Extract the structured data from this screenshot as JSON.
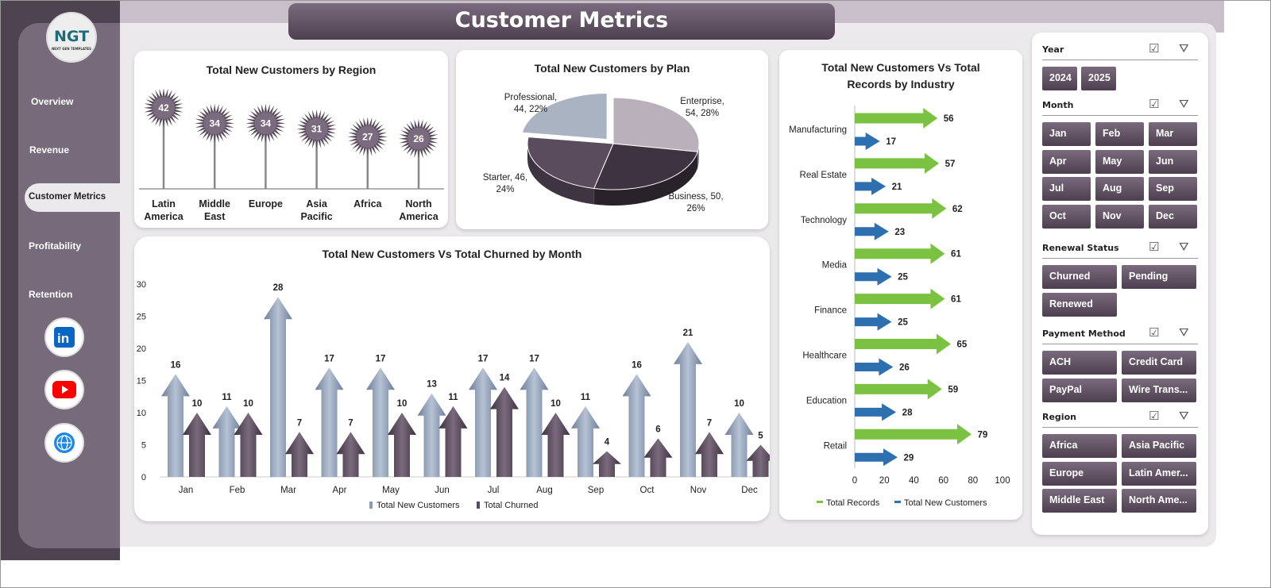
{
  "header": {
    "title": "Customer Metrics"
  },
  "logo": {
    "text": "NGT",
    "subtitle": "NEXT GEN TEMPLATES"
  },
  "sidebar": {
    "items": [
      {
        "label": "Overview"
      },
      {
        "label": "Revenue"
      },
      {
        "label": "Customer Metrics",
        "active": true
      },
      {
        "label": "Profitability"
      },
      {
        "label": "Retention"
      }
    ],
    "social": [
      {
        "icon": "linkedin-icon",
        "color": "#0a66c2"
      },
      {
        "icon": "youtube-icon",
        "color": "#ff0000"
      },
      {
        "icon": "globe-icon",
        "color": "#1e88e5"
      }
    ]
  },
  "colors": {
    "accent": "#5a4b5d",
    "new": "#8a9bb3",
    "churned": "#5c4b5e",
    "green": "#7cc242",
    "blue": "#2e6fb0"
  },
  "chart_data": [
    {
      "type": "bar",
      "title": "Total New Customers  by Region",
      "categories": [
        "Latin America",
        "Middle East",
        "Europe",
        "Asia Pacific",
        "Africa",
        "North America"
      ],
      "values": [
        42,
        34,
        34,
        31,
        27,
        26
      ]
    },
    {
      "type": "pie",
      "title": "Total New Customers  by Plan",
      "slices": [
        {
          "label": "Enterprise",
          "value": 54,
          "pct": "28%"
        },
        {
          "label": "Business",
          "value": 50,
          "pct": "26%"
        },
        {
          "label": "Starter",
          "value": 46,
          "pct": "24%"
        },
        {
          "label": "Professional",
          "value": 44,
          "pct": "22%"
        }
      ],
      "labels": [
        "Enterprise,",
        "54, 28%",
        "Business, 50,",
        "26%",
        "Starter, 46,",
        "24%",
        "Professional,",
        "44, 22%"
      ]
    },
    {
      "type": "bar",
      "title": "Total New Customers Vs Total Churned  by Month",
      "categories": [
        "Jan",
        "Feb",
        "Mar",
        "Apr",
        "May",
        "Jun",
        "Jul",
        "Aug",
        "Sep",
        "Oct",
        "Nov",
        "Dec"
      ],
      "ylim": [
        0,
        30
      ],
      "yticks": [
        "0",
        "5",
        "10",
        "15",
        "20",
        "25",
        "30"
      ],
      "series": [
        {
          "name": "Total New Customers",
          "values": [
            16,
            11,
            28,
            17,
            17,
            13,
            17,
            17,
            11,
            16,
            21,
            10
          ]
        },
        {
          "name": "Total Churned",
          "values": [
            10,
            10,
            7,
            7,
            10,
            11,
            14,
            10,
            4,
            6,
            7,
            5
          ]
        }
      ],
      "legend": "bottom"
    },
    {
      "type": "bar",
      "orientation": "horizontal",
      "title": "Total New Customers  Vs Total Records by Industry",
      "title_lines": [
        "Total New Customers  Vs Total",
        "Records by Industry"
      ],
      "categories": [
        "Manufacturing",
        "Real Estate",
        "Technology",
        "Media",
        "Finance",
        "Healthcare",
        "Education",
        "Retail"
      ],
      "xlim": [
        0,
        100
      ],
      "xticks": [
        "0",
        "20",
        "40",
        "60",
        "80",
        "100"
      ],
      "series": [
        {
          "name": "Total Records",
          "values": [
            56,
            57,
            62,
            61,
            61,
            65,
            59,
            79
          ]
        },
        {
          "name": "Total New Customers",
          "values": [
            17,
            21,
            23,
            25,
            25,
            26,
            28,
            29
          ]
        }
      ],
      "legend": "bottom"
    }
  ],
  "slicers": [
    {
      "title": "Year",
      "items": [
        "2024",
        "2025"
      ]
    },
    {
      "title": "Month",
      "items": [
        "Jan",
        "Feb",
        "Mar",
        "Apr",
        "May",
        "Jun",
        "Jul",
        "Aug",
        "Sep",
        "Oct",
        "Nov",
        "Dec"
      ]
    },
    {
      "title": "Renewal Status",
      "items": [
        "Churned",
        "Pending",
        "Renewed"
      ]
    },
    {
      "title": "Payment Method",
      "items": [
        "ACH",
        "Credit Card",
        "PayPal",
        "Wire Trans..."
      ]
    },
    {
      "title": "Region",
      "items": [
        "Africa",
        "Asia Pacific",
        "Europe",
        "Latin Amer...",
        "Middle East",
        "North Ame..."
      ]
    }
  ]
}
